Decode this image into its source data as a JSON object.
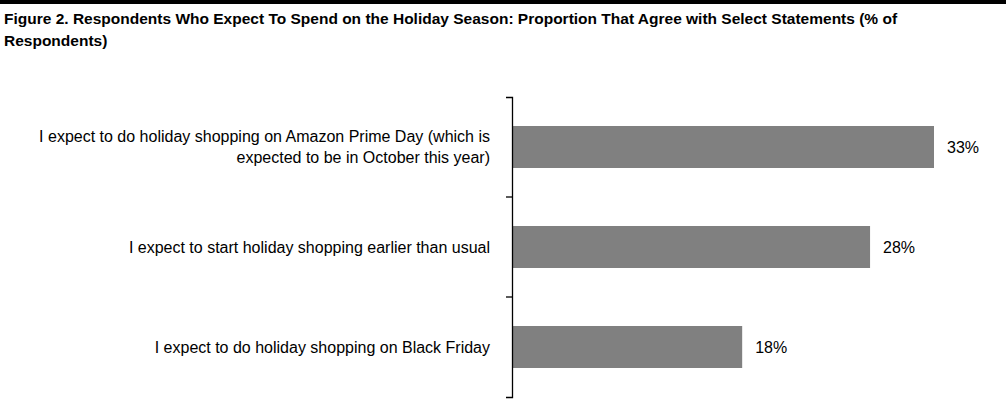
{
  "chart_data": {
    "type": "bar",
    "orientation": "horizontal",
    "title": "Figure 2. Respondents Who Expect To Spend on the Holiday Season: Proportion That Agree with Select Statements (% of Respondents)",
    "categories": [
      "I expect to do holiday shopping on Amazon Prime Day (which is expected to be in October this year)",
      "I expect to start holiday shopping earlier than usual",
      "I expect to do holiday shopping on Black Friday"
    ],
    "values": [
      33,
      28,
      18
    ],
    "value_labels": [
      "33%",
      "28%",
      "18%"
    ],
    "color": "#808080",
    "xlim": [
      0,
      33
    ],
    "data_labels": true,
    "tick_labels": "y"
  }
}
